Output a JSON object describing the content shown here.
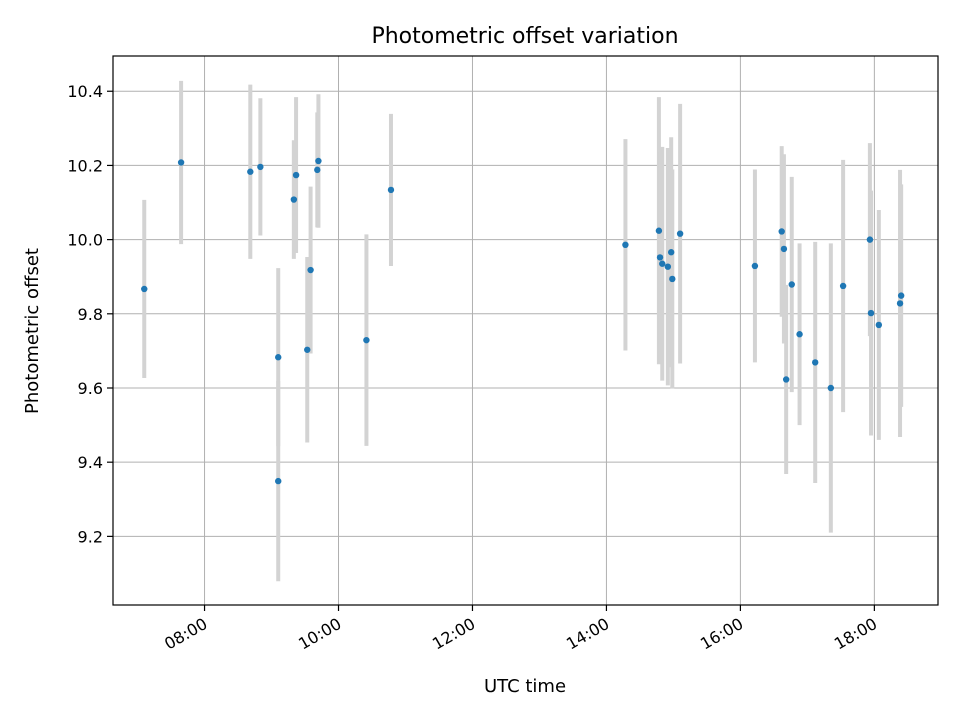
{
  "chart_data": {
    "type": "scatter",
    "title": "Photometric offset variation",
    "xlabel": "UTC time",
    "ylabel": "Photometric offset",
    "x_unit": "hours UTC",
    "xlim": [
      "06:38",
      "18:57"
    ],
    "ylim": [
      9.015,
      10.495
    ],
    "x_ticks": [
      "08:00",
      "10:00",
      "12:00",
      "14:00",
      "16:00",
      "18:00"
    ],
    "y_ticks": [
      "9.2",
      "9.4",
      "9.6",
      "9.8",
      "10.0",
      "10.2",
      "10.4"
    ],
    "grid": true,
    "colors": {
      "point": "#1f77b4",
      "errorbar": "#d3d3d3",
      "grid": "#b0b0b0"
    },
    "points": [
      {
        "t": "07:06",
        "y": 9.867,
        "err": 0.24
      },
      {
        "t": "07:39",
        "y": 10.208,
        "err": 0.22
      },
      {
        "t": "08:41",
        "y": 10.183,
        "err": 0.235
      },
      {
        "t": "08:50",
        "y": 10.196,
        "err": 0.185
      },
      {
        "t": "09:06",
        "y": 9.683,
        "err": 0.24
      },
      {
        "t": "09:06",
        "y": 9.349,
        "err": 0.27
      },
      {
        "t": "09:20",
        "y": 10.108,
        "err": 0.16
      },
      {
        "t": "09:22",
        "y": 10.174,
        "err": 0.21
      },
      {
        "t": "09:32",
        "y": 9.703,
        "err": 0.25
      },
      {
        "t": "09:35",
        "y": 9.918,
        "err": 0.225
      },
      {
        "t": "09:41",
        "y": 10.188,
        "err": 0.155
      },
      {
        "t": "09:42",
        "y": 10.212,
        "err": 0.18
      },
      {
        "t": "10:25",
        "y": 9.729,
        "err": 0.285
      },
      {
        "t": "10:47",
        "y": 10.134,
        "err": 0.205
      },
      {
        "t": "14:17",
        "y": 9.986,
        "err": 0.285
      },
      {
        "t": "14:47",
        "y": 10.024,
        "err": 0.36
      },
      {
        "t": "14:48",
        "y": 9.952,
        "err": 0.285
      },
      {
        "t": "14:50",
        "y": 9.935,
        "err": 0.315
      },
      {
        "t": "14:55",
        "y": 9.927,
        "err": 0.32
      },
      {
        "t": "14:58",
        "y": 9.966,
        "err": 0.31
      },
      {
        "t": "14:59",
        "y": 9.894,
        "err": 0.295
      },
      {
        "t": "15:06",
        "y": 10.016,
        "err": 0.35
      },
      {
        "t": "16:13",
        "y": 9.929,
        "err": 0.26
      },
      {
        "t": "16:37",
        "y": 10.022,
        "err": 0.23
      },
      {
        "t": "16:39",
        "y": 9.975,
        "err": 0.255
      },
      {
        "t": "16:41",
        "y": 9.623,
        "err": 0.255
      },
      {
        "t": "16:46",
        "y": 9.879,
        "err": 0.29
      },
      {
        "t": "16:53",
        "y": 9.745,
        "err": 0.245
      },
      {
        "t": "17:07",
        "y": 9.669,
        "err": 0.325
      },
      {
        "t": "17:21",
        "y": 9.6,
        "err": 0.39
      },
      {
        "t": "17:32",
        "y": 9.875,
        "err": 0.34
      },
      {
        "t": "17:56",
        "y": 10.0,
        "err": 0.26
      },
      {
        "t": "17:57",
        "y": 9.802,
        "err": 0.33
      },
      {
        "t": "18:04",
        "y": 9.77,
        "err": 0.31
      },
      {
        "t": "18:23",
        "y": 9.828,
        "err": 0.36
      },
      {
        "t": "18:24",
        "y": 9.849,
        "err": 0.3
      }
    ]
  }
}
